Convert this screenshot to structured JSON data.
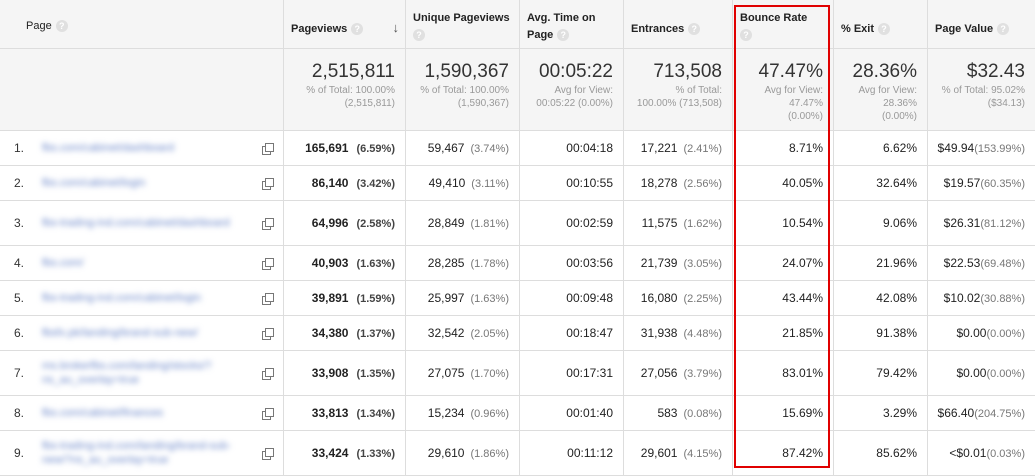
{
  "columns": {
    "page": "Page",
    "pageviews": "Pageviews",
    "unique_pageviews": "Unique Pageviews",
    "avg_time_line1": "Avg. Time on",
    "avg_time_line2": "Page",
    "entrances": "Entrances",
    "bounce_rate": "Bounce Rate",
    "exit": "% Exit",
    "page_value": "Page Value"
  },
  "totals": {
    "pageviews": {
      "value": "2,515,811",
      "l1": "% of Total: 100.00%",
      "l2": "(2,515,811)",
      "l3": ""
    },
    "unique_pageviews": {
      "value": "1,590,367",
      "l1": "% of Total: 100.00%",
      "l2": "(1,590,367)",
      "l3": ""
    },
    "avg_time": {
      "value": "00:05:22",
      "l1": "Avg for View:",
      "l2": "00:05:22 (0.00%)",
      "l3": ""
    },
    "entrances": {
      "value": "713,508",
      "l1": "% of Total:",
      "l2": "100.00% (713,508)",
      "l3": ""
    },
    "bounce_rate": {
      "value": "47.47%",
      "l1": "Avg for View:",
      "l2": "47.47%",
      "l3": "(0.00%)"
    },
    "exit": {
      "value": "28.36%",
      "l1": "Avg for View:",
      "l2": "28.36%",
      "l3": "(0.00%)"
    },
    "page_value": {
      "value": "$32.43",
      "l1": "% of Total: 95.02%",
      "l2": "($34.13)",
      "l3": ""
    }
  },
  "rows": [
    {
      "rank": "1.",
      "page": "fbs.com/cabinet/dashboard",
      "pv": "165,691",
      "pv_pct": "(6.59%)",
      "upv": "59,467",
      "upv_pct": "(3.74%)",
      "time": "00:04:18",
      "ent": "17,221",
      "ent_pct": "(2.41%)",
      "bounce": "8.71%",
      "exit": "6.62%",
      "value": "$49.94",
      "value_pct": "(153.99%)"
    },
    {
      "rank": "2.",
      "page": "fbs.com/cabinet/login",
      "pv": "86,140",
      "pv_pct": "(3.42%)",
      "upv": "49,410",
      "upv_pct": "(3.11%)",
      "time": "00:10:55",
      "ent": "18,278",
      "ent_pct": "(2.56%)",
      "bounce": "40.05%",
      "exit": "32.64%",
      "value": "$19.57",
      "value_pct": "(60.35%)"
    },
    {
      "rank": "3.",
      "page": "fbs-trading-ind.com/cabinet/dashboard",
      "pv": "64,996",
      "pv_pct": "(2.58%)",
      "upv": "28,849",
      "upv_pct": "(1.81%)",
      "time": "00:02:59",
      "ent": "11,575",
      "ent_pct": "(1.62%)",
      "bounce": "10.54%",
      "exit": "9.06%",
      "value": "$26.31",
      "value_pct": "(81.12%)"
    },
    {
      "rank": "4.",
      "page": "fbs.com/",
      "pv": "40,903",
      "pv_pct": "(1.63%)",
      "upv": "28,285",
      "upv_pct": "(1.78%)",
      "time": "00:03:56",
      "ent": "21,739",
      "ent_pct": "(3.05%)",
      "bounce": "24.07%",
      "exit": "21.96%",
      "value": "$22.53",
      "value_pct": "(69.48%)"
    },
    {
      "rank": "5.",
      "page": "fbs-trading-ind.com/cabinet/login",
      "pv": "39,891",
      "pv_pct": "(1.59%)",
      "upv": "25,997",
      "upv_pct": "(1.63%)",
      "time": "00:09:48",
      "ent": "16,080",
      "ent_pct": "(2.25%)",
      "bounce": "43.44%",
      "exit": "42.08%",
      "value": "$10.02",
      "value_pct": "(30.88%)"
    },
    {
      "rank": "6.",
      "page": "fbsfx.pk/landing/brand-sub-new/",
      "pv": "34,380",
      "pv_pct": "(1.37%)",
      "upv": "32,542",
      "upv_pct": "(2.05%)",
      "time": "00:18:47",
      "ent": "31,938",
      "ent_pct": "(4.48%)",
      "bounce": "21.85%",
      "exit": "91.38%",
      "value": "$0.00",
      "value_pct": "(0.00%)"
    },
    {
      "rank": "7.",
      "page": "ms.brokerfbs.com/landing/stocks/?ns_au_overlay=true",
      "pv": "33,908",
      "pv_pct": "(1.35%)",
      "upv": "27,075",
      "upv_pct": "(1.70%)",
      "time": "00:17:31",
      "ent": "27,056",
      "ent_pct": "(3.79%)",
      "bounce": "83.01%",
      "exit": "79.42%",
      "value": "$0.00",
      "value_pct": "(0.00%)"
    },
    {
      "rank": "8.",
      "page": "fbs.com/cabinet/finances",
      "pv": "33,813",
      "pv_pct": "(1.34%)",
      "upv": "15,234",
      "upv_pct": "(0.96%)",
      "time": "00:01:40",
      "ent": "583",
      "ent_pct": "(0.08%)",
      "bounce": "15.69%",
      "exit": "3.29%",
      "value": "$66.40",
      "value_pct": "(204.75%)"
    },
    {
      "rank": "9.",
      "page": "fbs-trading-ind.com/landing/brand-sub-new/?ns_au_overlay=true",
      "pv": "33,424",
      "pv_pct": "(1.33%)",
      "upv": "29,610",
      "upv_pct": "(1.86%)",
      "time": "00:11:12",
      "ent": "29,601",
      "ent_pct": "(4.15%)",
      "bounce": "87.42%",
      "exit": "85.62%",
      "value": "<$0.01",
      "value_pct": "(0.03%)"
    }
  ]
}
